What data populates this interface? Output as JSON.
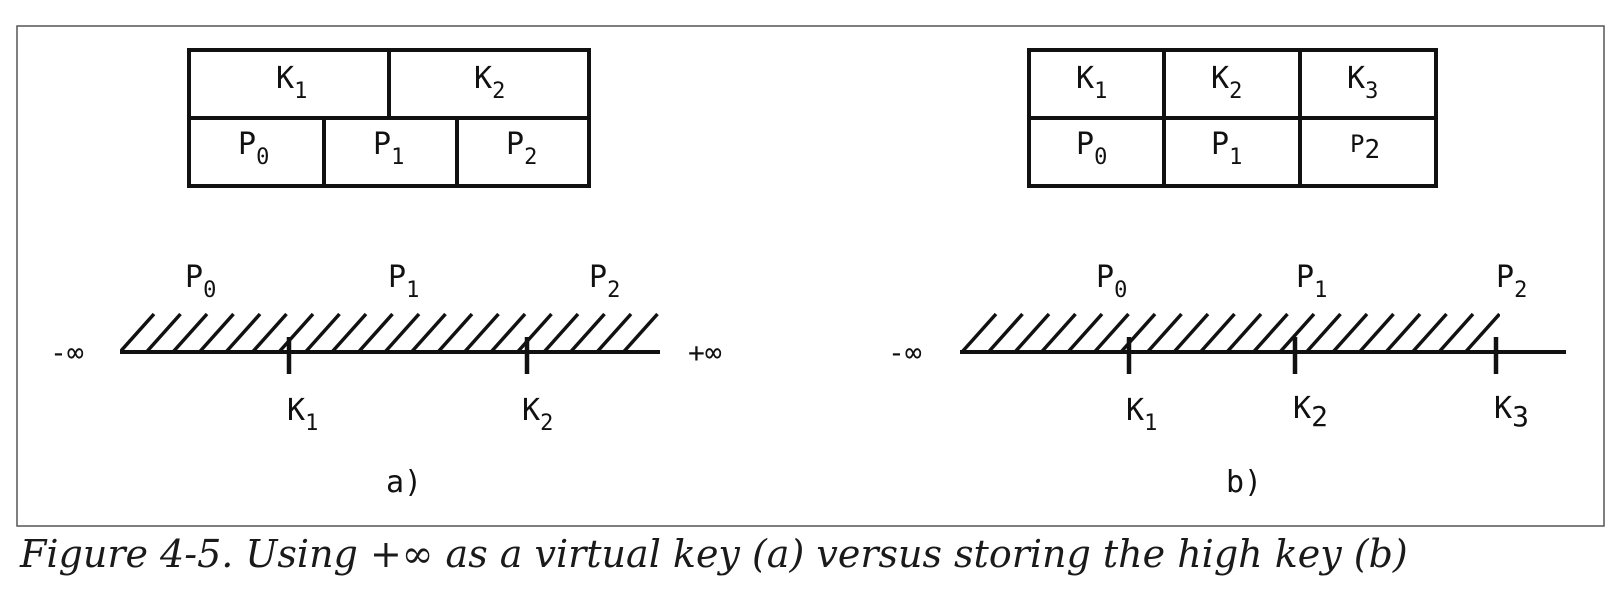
{
  "figure_a": {
    "node": {
      "keys": [
        {
          "base": "K",
          "sub": "1"
        },
        {
          "base": "K",
          "sub": "2"
        }
      ],
      "pointers": [
        {
          "base": "P",
          "sub": "0"
        },
        {
          "base": "P",
          "sub": "1"
        },
        {
          "base": "P",
          "sub": "2"
        }
      ]
    },
    "line": {
      "left_end": "-∞",
      "right_end": "+∞",
      "range_labels": [
        {
          "base": "P",
          "sub": "0"
        },
        {
          "base": "P",
          "sub": "1"
        },
        {
          "base": "P",
          "sub": "2"
        }
      ],
      "tick_labels": [
        {
          "base": "K",
          "sub": "1"
        },
        {
          "base": "K",
          "sub": "2"
        }
      ]
    },
    "label": "a)"
  },
  "figure_b": {
    "node": {
      "keys": [
        {
          "base": "K",
          "sub": "1"
        },
        {
          "base": "K",
          "sub": "2"
        },
        {
          "base": "K",
          "sub": "3"
        }
      ],
      "pointers": [
        {
          "base": "P",
          "sub": "0"
        },
        {
          "base": "P",
          "sub": "1"
        },
        {
          "base": "P",
          "sub": "2"
        }
      ]
    },
    "line": {
      "left_end": "-∞",
      "range_labels": [
        {
          "base": "P",
          "sub": "0"
        },
        {
          "base": "P",
          "sub": "1"
        },
        {
          "base": "P",
          "sub": "2"
        }
      ],
      "tick_labels": [
        {
          "base": "K",
          "sub": "1"
        },
        {
          "base": "K",
          "sub": "2"
        },
        {
          "base": "K",
          "sub": "3"
        }
      ]
    },
    "label": "b)"
  },
  "caption": "Figure 4-5. Using +∞ as a virtual key (a) versus storing the high key (b)"
}
